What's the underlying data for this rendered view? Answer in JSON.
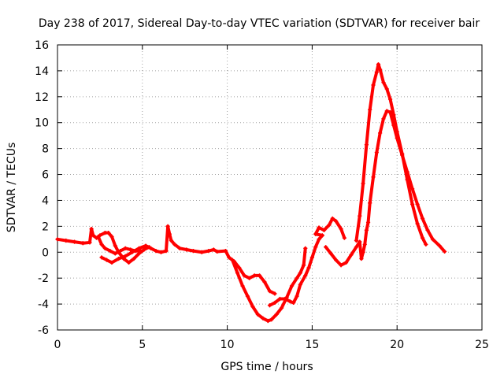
{
  "chart_data": {
    "type": "scatter",
    "title": "Day 238 of 2017, Sidereal Day-to-day VTEC variation (SDTVAR) for receiver bair",
    "xlabel": "GPS time / hours",
    "ylabel": "SDTVAR / TECUs",
    "xlim": [
      0,
      25
    ],
    "ylim": [
      -6,
      16
    ],
    "x_ticks": [
      0,
      5,
      10,
      15,
      20,
      25
    ],
    "y_ticks": [
      -6,
      -4,
      -2,
      0,
      2,
      4,
      6,
      8,
      10,
      12,
      14,
      16
    ],
    "grid": true,
    "marker": "+",
    "color": "#ff0000",
    "series": [
      {
        "name": "SDTVAR",
        "points": [
          [
            0.0,
            1.0
          ],
          [
            0.5,
            0.9
          ],
          [
            1.0,
            0.8
          ],
          [
            1.5,
            0.7
          ],
          [
            1.9,
            0.75
          ],
          [
            2.0,
            1.8
          ],
          [
            2.1,
            1.3
          ],
          [
            2.3,
            1.1
          ],
          [
            2.5,
            1.3
          ],
          [
            2.8,
            1.5
          ],
          [
            3.0,
            1.5
          ],
          [
            3.2,
            1.2
          ],
          [
            3.4,
            0.5
          ],
          [
            3.6,
            0.0
          ],
          [
            3.9,
            -0.5
          ],
          [
            4.2,
            -0.8
          ],
          [
            4.5,
            -0.5
          ],
          [
            4.8,
            -0.1
          ],
          [
            5.1,
            0.2
          ],
          [
            5.4,
            0.4
          ],
          [
            2.4,
            1.2
          ],
          [
            2.6,
            0.6
          ],
          [
            2.8,
            0.3
          ],
          [
            3.1,
            0.1
          ],
          [
            3.4,
            -0.1
          ],
          [
            3.7,
            0.1
          ],
          [
            4.0,
            0.3
          ],
          [
            4.3,
            0.2
          ],
          [
            4.6,
            0.1
          ],
          [
            4.9,
            0.1
          ],
          [
            2.6,
            -0.4
          ],
          [
            2.9,
            -0.6
          ],
          [
            3.2,
            -0.8
          ],
          [
            3.6,
            -0.5
          ],
          [
            4.0,
            -0.3
          ],
          [
            4.4,
            0.0
          ],
          [
            4.8,
            0.3
          ],
          [
            5.2,
            0.5
          ],
          [
            5.5,
            0.3
          ],
          [
            5.8,
            0.1
          ],
          [
            6.1,
            0.0
          ],
          [
            6.4,
            0.1
          ],
          [
            6.5,
            2.0
          ],
          [
            6.6,
            1.4
          ],
          [
            6.7,
            0.9
          ],
          [
            6.9,
            0.6
          ],
          [
            7.2,
            0.3
          ],
          [
            7.6,
            0.2
          ],
          [
            8.0,
            0.1
          ],
          [
            8.5,
            0.0
          ],
          [
            8.9,
            0.1
          ],
          [
            9.2,
            0.2
          ],
          [
            9.4,
            0.05
          ],
          [
            9.9,
            0.1
          ],
          [
            10.1,
            -0.4
          ],
          [
            10.4,
            -0.7
          ],
          [
            10.7,
            -1.2
          ],
          [
            11.0,
            -1.8
          ],
          [
            11.3,
            -2.0
          ],
          [
            11.6,
            -1.8
          ],
          [
            11.9,
            -1.8
          ],
          [
            12.2,
            -2.3
          ],
          [
            12.5,
            -3.0
          ],
          [
            12.8,
            -3.2
          ],
          [
            10.3,
            -0.6
          ],
          [
            10.6,
            -1.6
          ],
          [
            10.9,
            -2.6
          ],
          [
            11.2,
            -3.4
          ],
          [
            11.5,
            -4.2
          ],
          [
            11.8,
            -4.8
          ],
          [
            12.1,
            -5.1
          ],
          [
            12.4,
            -5.3
          ],
          [
            12.6,
            -5.2
          ],
          [
            12.9,
            -4.8
          ],
          [
            13.2,
            -4.3
          ],
          [
            13.5,
            -3.5
          ],
          [
            13.8,
            -2.6
          ],
          [
            14.1,
            -2.0
          ],
          [
            14.3,
            -1.6
          ],
          [
            14.5,
            -1.0
          ],
          [
            14.6,
            0.3
          ],
          [
            12.5,
            -4.1
          ],
          [
            12.8,
            -3.9
          ],
          [
            13.1,
            -3.6
          ],
          [
            13.4,
            -3.6
          ],
          [
            13.7,
            -3.8
          ],
          [
            13.9,
            -3.9
          ],
          [
            14.1,
            -3.4
          ],
          [
            14.3,
            -2.5
          ],
          [
            14.6,
            -1.8
          ],
          [
            14.8,
            -1.2
          ],
          [
            15.0,
            -0.4
          ],
          [
            15.2,
            0.4
          ],
          [
            15.4,
            1.0
          ],
          [
            15.6,
            1.3
          ],
          [
            15.2,
            1.4
          ],
          [
            15.4,
            1.9
          ],
          [
            15.7,
            1.7
          ],
          [
            16.0,
            2.1
          ],
          [
            16.2,
            2.6
          ],
          [
            16.4,
            2.4
          ],
          [
            16.7,
            1.8
          ],
          [
            16.9,
            1.1
          ],
          [
            15.8,
            0.4
          ],
          [
            16.1,
            -0.1
          ],
          [
            16.4,
            -0.6
          ],
          [
            16.7,
            -1.0
          ],
          [
            17.0,
            -0.8
          ],
          [
            17.3,
            -0.2
          ],
          [
            17.6,
            0.4
          ],
          [
            17.8,
            0.8
          ],
          [
            17.9,
            -0.5
          ],
          [
            18.0,
            0.0
          ],
          [
            18.1,
            0.6
          ],
          [
            18.2,
            1.7
          ],
          [
            18.3,
            2.3
          ],
          [
            18.4,
            3.8
          ],
          [
            18.6,
            5.8
          ],
          [
            18.8,
            7.7
          ],
          [
            19.0,
            9.2
          ],
          [
            19.2,
            10.3
          ],
          [
            19.4,
            10.9
          ],
          [
            19.6,
            10.8
          ],
          [
            19.8,
            9.8
          ],
          [
            20.0,
            8.8
          ],
          [
            20.3,
            7.5
          ],
          [
            20.6,
            6.2
          ],
          [
            20.9,
            4.9
          ],
          [
            21.2,
            3.7
          ],
          [
            21.5,
            2.6
          ],
          [
            21.8,
            1.7
          ],
          [
            22.1,
            1.0
          ],
          [
            22.5,
            0.5
          ],
          [
            22.8,
            0.05
          ],
          [
            17.6,
            0.9
          ],
          [
            17.8,
            2.8
          ],
          [
            18.0,
            5.3
          ],
          [
            18.2,
            8.3
          ],
          [
            18.4,
            11.0
          ],
          [
            18.6,
            12.9
          ],
          [
            18.8,
            13.9
          ],
          [
            18.9,
            14.5
          ],
          [
            19.0,
            14.1
          ],
          [
            19.2,
            13.1
          ],
          [
            19.4,
            12.6
          ],
          [
            19.6,
            11.8
          ],
          [
            19.8,
            10.6
          ],
          [
            20.0,
            9.3
          ],
          [
            20.3,
            7.6
          ],
          [
            20.6,
            5.6
          ],
          [
            20.9,
            3.7
          ],
          [
            21.2,
            2.2
          ],
          [
            21.5,
            1.1
          ],
          [
            21.7,
            0.6
          ]
        ]
      }
    ]
  }
}
